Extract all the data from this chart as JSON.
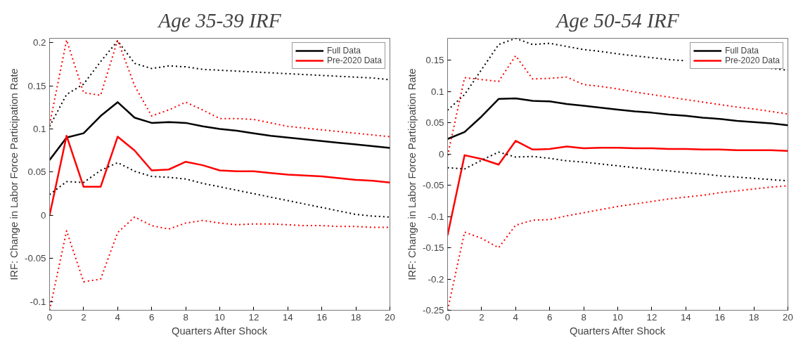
{
  "chart_data": [
    {
      "type": "line",
      "title": "Age 35-39 IRF",
      "xlabel": "Quarters After Shock",
      "ylabel": "IRF: Change in Labor Force Participation Rate",
      "x": [
        0,
        1,
        2,
        3,
        4,
        5,
        6,
        7,
        8,
        9,
        10,
        11,
        12,
        13,
        14,
        15,
        16,
        17,
        18,
        19,
        20
      ],
      "xlim": [
        0,
        20
      ],
      "xticks": [
        0,
        2,
        4,
        6,
        8,
        10,
        12,
        14,
        16,
        18,
        20
      ],
      "ylim": [
        -0.11,
        0.205
      ],
      "yticks": [
        -0.1,
        -0.05,
        0,
        0.05,
        0.1,
        0.15,
        0.2
      ],
      "grid": false,
      "legend": "top right",
      "series": [
        {
          "name": "Full Data",
          "color": "#000000",
          "line_style": "solid",
          "values": [
            0.064,
            0.09,
            0.095,
            0.115,
            0.131,
            0.113,
            0.107,
            0.108,
            0.107,
            0.103,
            0.1,
            0.098,
            0.095,
            0.092,
            0.09,
            0.088,
            0.086,
            0.084,
            0.082,
            0.08,
            0.078
          ]
        },
        {
          "name": "Pre-2020 Data",
          "color": "#ff0000",
          "line_style": "solid",
          "values": [
            0,
            0.092,
            0.033,
            0.033,
            0.091,
            0.075,
            0.052,
            0.053,
            0.062,
            0.058,
            0.052,
            0.051,
            0.051,
            0.049,
            0.047,
            0.046,
            0.045,
            0.043,
            0.041,
            0.04,
            0.038
          ]
        },
        {
          "color": "#000000",
          "line_style": "dotted",
          "values": [
            0.103,
            0.14,
            0.152,
            0.178,
            0.202,
            0.176,
            0.17,
            0.173,
            0.172,
            0.169,
            0.168,
            0.167,
            0.166,
            0.165,
            0.164,
            0.163,
            0.162,
            0.161,
            0.16,
            0.159,
            0.157
          ]
        },
        {
          "color": "#000000",
          "line_style": "dotted",
          "values": [
            0.024,
            0.039,
            0.038,
            0.052,
            0.061,
            0.051,
            0.045,
            0.044,
            0.042,
            0.037,
            0.033,
            0.029,
            0.025,
            0.021,
            0.017,
            0.013,
            0.009,
            0.005,
            0.001,
            -0.001,
            -0.002
          ]
        },
        {
          "color": "#ff0000",
          "line_style": "dotted",
          "values": [
            0.105,
            0.203,
            0.142,
            0.139,
            0.203,
            0.15,
            0.115,
            0.122,
            0.131,
            0.122,
            0.112,
            0.112,
            0.111,
            0.107,
            0.103,
            0.101,
            0.099,
            0.097,
            0.095,
            0.093,
            0.091
          ]
        },
        {
          "color": "#ff0000",
          "line_style": "dotted",
          "values": [
            -0.11,
            -0.018,
            -0.077,
            -0.074,
            -0.02,
            -0.002,
            -0.012,
            -0.016,
            -0.009,
            -0.006,
            -0.009,
            -0.011,
            -0.01,
            -0.01,
            -0.011,
            -0.012,
            -0.012,
            -0.013,
            -0.013,
            -0.014,
            -0.014
          ]
        }
      ]
    },
    {
      "type": "line",
      "title": "Age 50-54 IRF",
      "xlabel": "Quarters After Shock",
      "ylabel": "IRF: Change in Labor Force Participation Rate",
      "x": [
        0,
        1,
        2,
        3,
        4,
        5,
        6,
        7,
        8,
        9,
        10,
        11,
        12,
        13,
        14,
        15,
        16,
        17,
        18,
        19,
        20
      ],
      "xlim": [
        0,
        20
      ],
      "xticks": [
        0,
        2,
        4,
        6,
        8,
        10,
        12,
        14,
        16,
        18,
        20
      ],
      "ylim": [
        -0.25,
        0.185
      ],
      "yticks": [
        -0.25,
        -0.2,
        -0.15,
        -0.1,
        -0.05,
        0,
        0.05,
        0.1,
        0.15
      ],
      "grid": false,
      "legend": "top right",
      "series": [
        {
          "name": "Full Data",
          "color": "#000000",
          "line_style": "solid",
          "values": [
            0.024,
            0.035,
            0.06,
            0.088,
            0.089,
            0.085,
            0.084,
            0.08,
            0.077,
            0.074,
            0.071,
            0.068,
            0.066,
            0.063,
            0.061,
            0.058,
            0.056,
            0.053,
            0.051,
            0.049,
            0.046
          ]
        },
        {
          "name": "Pre-2020 Data",
          "color": "#ff0000",
          "line_style": "solid",
          "values": [
            -0.13,
            -0.002,
            -0.008,
            -0.017,
            0.021,
            0.007,
            0.008,
            0.012,
            0.009,
            0.01,
            0.01,
            0.009,
            0.009,
            0.008,
            0.008,
            0.007,
            0.007,
            0.006,
            0.006,
            0.006,
            0.005
          ]
        },
        {
          "color": "#000000",
          "line_style": "dotted",
          "values": [
            0.07,
            0.095,
            0.135,
            0.175,
            0.185,
            0.175,
            0.177,
            0.172,
            0.167,
            0.164,
            0.16,
            0.157,
            0.154,
            0.151,
            0.149,
            null,
            null,
            null,
            null,
            0.137,
            0.134
          ]
        },
        {
          "color": "#000000",
          "line_style": "dotted",
          "values": [
            -0.022,
            -0.024,
            -0.01,
            0.003,
            -0.005,
            -0.004,
            -0.007,
            -0.011,
            -0.013,
            -0.016,
            -0.019,
            -0.022,
            -0.025,
            -0.027,
            -0.03,
            -0.032,
            -0.035,
            -0.037,
            -0.039,
            -0.041,
            -0.043
          ]
        },
        {
          "color": "#ff0000",
          "line_style": "dotted",
          "values": [
            -0.003,
            0.122,
            0.119,
            0.116,
            0.157,
            0.12,
            0.121,
            0.123,
            0.111,
            0.108,
            0.104,
            0.099,
            0.095,
            0.091,
            0.087,
            0.083,
            0.079,
            0.075,
            0.072,
            0.068,
            0.064
          ]
        },
        {
          "color": "#ff0000",
          "line_style": "dotted",
          "values": [
            -0.25,
            -0.125,
            -0.135,
            -0.15,
            -0.114,
            -0.106,
            -0.105,
            -0.099,
            -0.094,
            -0.089,
            -0.084,
            -0.08,
            -0.076,
            -0.072,
            -0.069,
            -0.066,
            -0.062,
            -0.059,
            -0.056,
            -0.053,
            -0.051
          ]
        }
      ]
    }
  ]
}
